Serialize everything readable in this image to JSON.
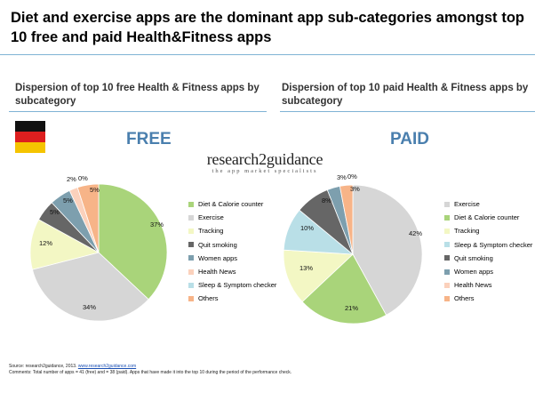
{
  "headline": "Diet and exercise apps are the dominant app sub-categories amongst top 10 free and paid Health&Fitness apps",
  "colors": {
    "accent_rule": "#7fb3d5",
    "label_blue": "#4a7fae",
    "Exercise": "#d6d6d6",
    "Diet & Calorie counter": "#a9d47a",
    "Tracking": "#f3f7c4",
    "Quit smoking": "#666666",
    "Women apps": "#7d9fae",
    "Health News": "#fbd1bc",
    "Sleep & Symptom checker": "#b9dfe7",
    "Others": "#f7b488"
  },
  "flag_icon": "germany-flag-icon",
  "logo": {
    "name": "research2guidance",
    "tagline": "the app market specialists"
  },
  "footer": {
    "source_prefix": "Source: research2guidance, 2013. ",
    "source_link": "www.research2guidance.com",
    "comments": "Comments:  Total number of apps = 41 (free) and = 38 (paid). Apps that have made it into the top 10 during the period of the performance check."
  },
  "chart_data": [
    {
      "type": "pie",
      "title": "Dispersion of top 10 free Health & Fitness apps by subcategory",
      "label": "FREE",
      "slices": [
        {
          "name": "Diet & Calorie counter",
          "value": 37,
          "label": "37%"
        },
        {
          "name": "Exercise",
          "value": 34,
          "label": "34%"
        },
        {
          "name": "Tracking",
          "value": 12,
          "label": "12%"
        },
        {
          "name": "Quit smoking",
          "value": 5,
          "label": "5%"
        },
        {
          "name": "Women apps",
          "value": 5,
          "label": "5%"
        },
        {
          "name": "Health News",
          "value": 2,
          "label": "2%"
        },
        {
          "name": "Sleep & Symptom checker",
          "value": 0,
          "label": "0%"
        },
        {
          "name": "Others",
          "value": 5,
          "label": "5%"
        }
      ],
      "legend": [
        "Diet & Calorie counter",
        "Exercise",
        "Tracking",
        "Quit smoking",
        "Women apps",
        "Health News",
        "Sleep & Symptom checker",
        "Others"
      ],
      "legend_position": "right"
    },
    {
      "type": "pie",
      "title": "Dispersion of top 10 paid Health & Fitness apps by subcategory",
      "label": "PAID",
      "slices": [
        {
          "name": "Exercise",
          "value": 42,
          "label": "42%"
        },
        {
          "name": "Diet & Calorie counter",
          "value": 21,
          "label": "21%"
        },
        {
          "name": "Tracking",
          "value": 13,
          "label": "13%"
        },
        {
          "name": "Sleep & Symptom checker",
          "value": 10,
          "label": "10%"
        },
        {
          "name": "Quit smoking",
          "value": 8,
          "label": "8%"
        },
        {
          "name": "Women apps",
          "value": 3,
          "label": "3%"
        },
        {
          "name": "Health News",
          "value": 0,
          "label": "0%"
        },
        {
          "name": "Others",
          "value": 3,
          "label": "3%"
        }
      ],
      "legend": [
        "Exercise",
        "Diet & Calorie counter",
        "Tracking",
        "Sleep & Symptom checker",
        "Quit smoking",
        "Women apps",
        "Health News",
        "Others"
      ],
      "legend_position": "right"
    }
  ]
}
